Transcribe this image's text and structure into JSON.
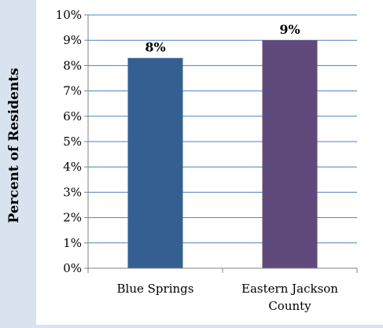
{
  "chart_data": {
    "type": "bar",
    "categories": [
      "Blue Springs",
      "Eastern Jackson County"
    ],
    "category_label_lines": [
      [
        "Blue Springs"
      ],
      [
        "Eastern Jackson",
        "County"
      ]
    ],
    "values": [
      8.3,
      9.0
    ],
    "data_labels": [
      "8%",
      "9%"
    ],
    "bar_colors": [
      "#365f91",
      "#604a7b"
    ],
    "title": "",
    "xlabel": "",
    "ylabel": "Percent of Residents",
    "ylim": [
      0,
      10
    ],
    "y_ticks": [
      "0%",
      "1%",
      "2%",
      "3%",
      "4%",
      "5%",
      "6%",
      "7%",
      "8%",
      "9%",
      "10%"
    ],
    "grid": true,
    "legend": "none"
  },
  "colors": {
    "outer_background": "#d9e2ef",
    "plot_background": "#ffffff",
    "gridline": "#4f81bd",
    "axis": "#808080",
    "text": "#000000"
  }
}
